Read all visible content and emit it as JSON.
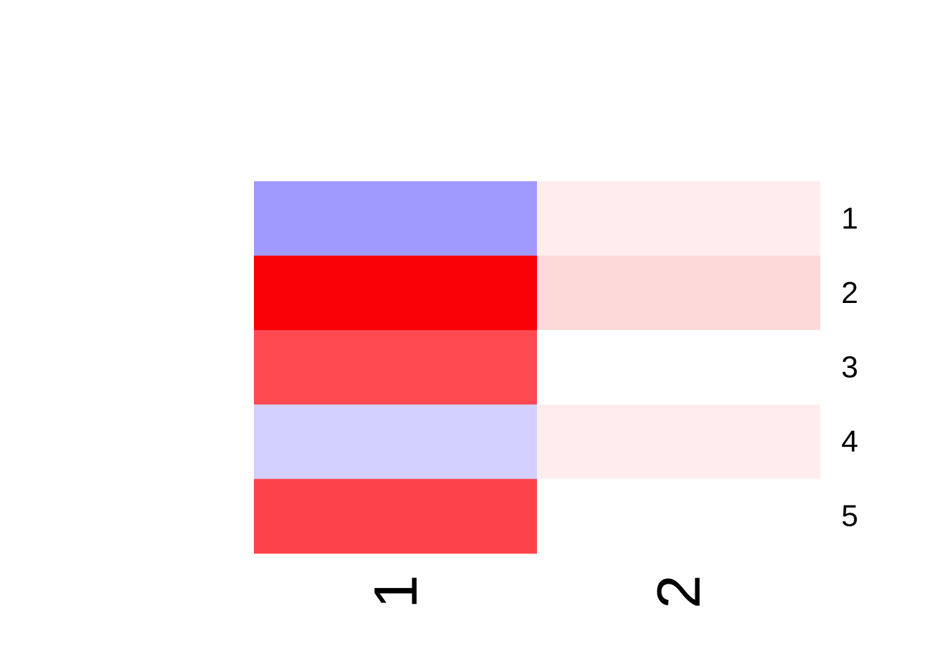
{
  "chart_data": {
    "type": "heatmap",
    "title": "",
    "xlabel": "",
    "ylabel": "",
    "columns": [
      "1",
      "2"
    ],
    "rows": [
      "1",
      "2",
      "3",
      "4",
      "5"
    ],
    "cells": [
      [
        {
          "color": "#a09aff"
        },
        {
          "color": "#ffeded"
        }
      ],
      [
        {
          "color": "#fa0007"
        },
        {
          "color": "#fdd9d9"
        }
      ],
      [
        {
          "color": "#fe4a50"
        },
        {
          "color": "#ffffff"
        }
      ],
      [
        {
          "color": "#d3d0ff"
        },
        {
          "color": "#ffeded"
        }
      ],
      [
        {
          "color": "#fe424a"
        },
        {
          "color": "#ffffff"
        }
      ]
    ],
    "grid": false,
    "legend": "none"
  }
}
